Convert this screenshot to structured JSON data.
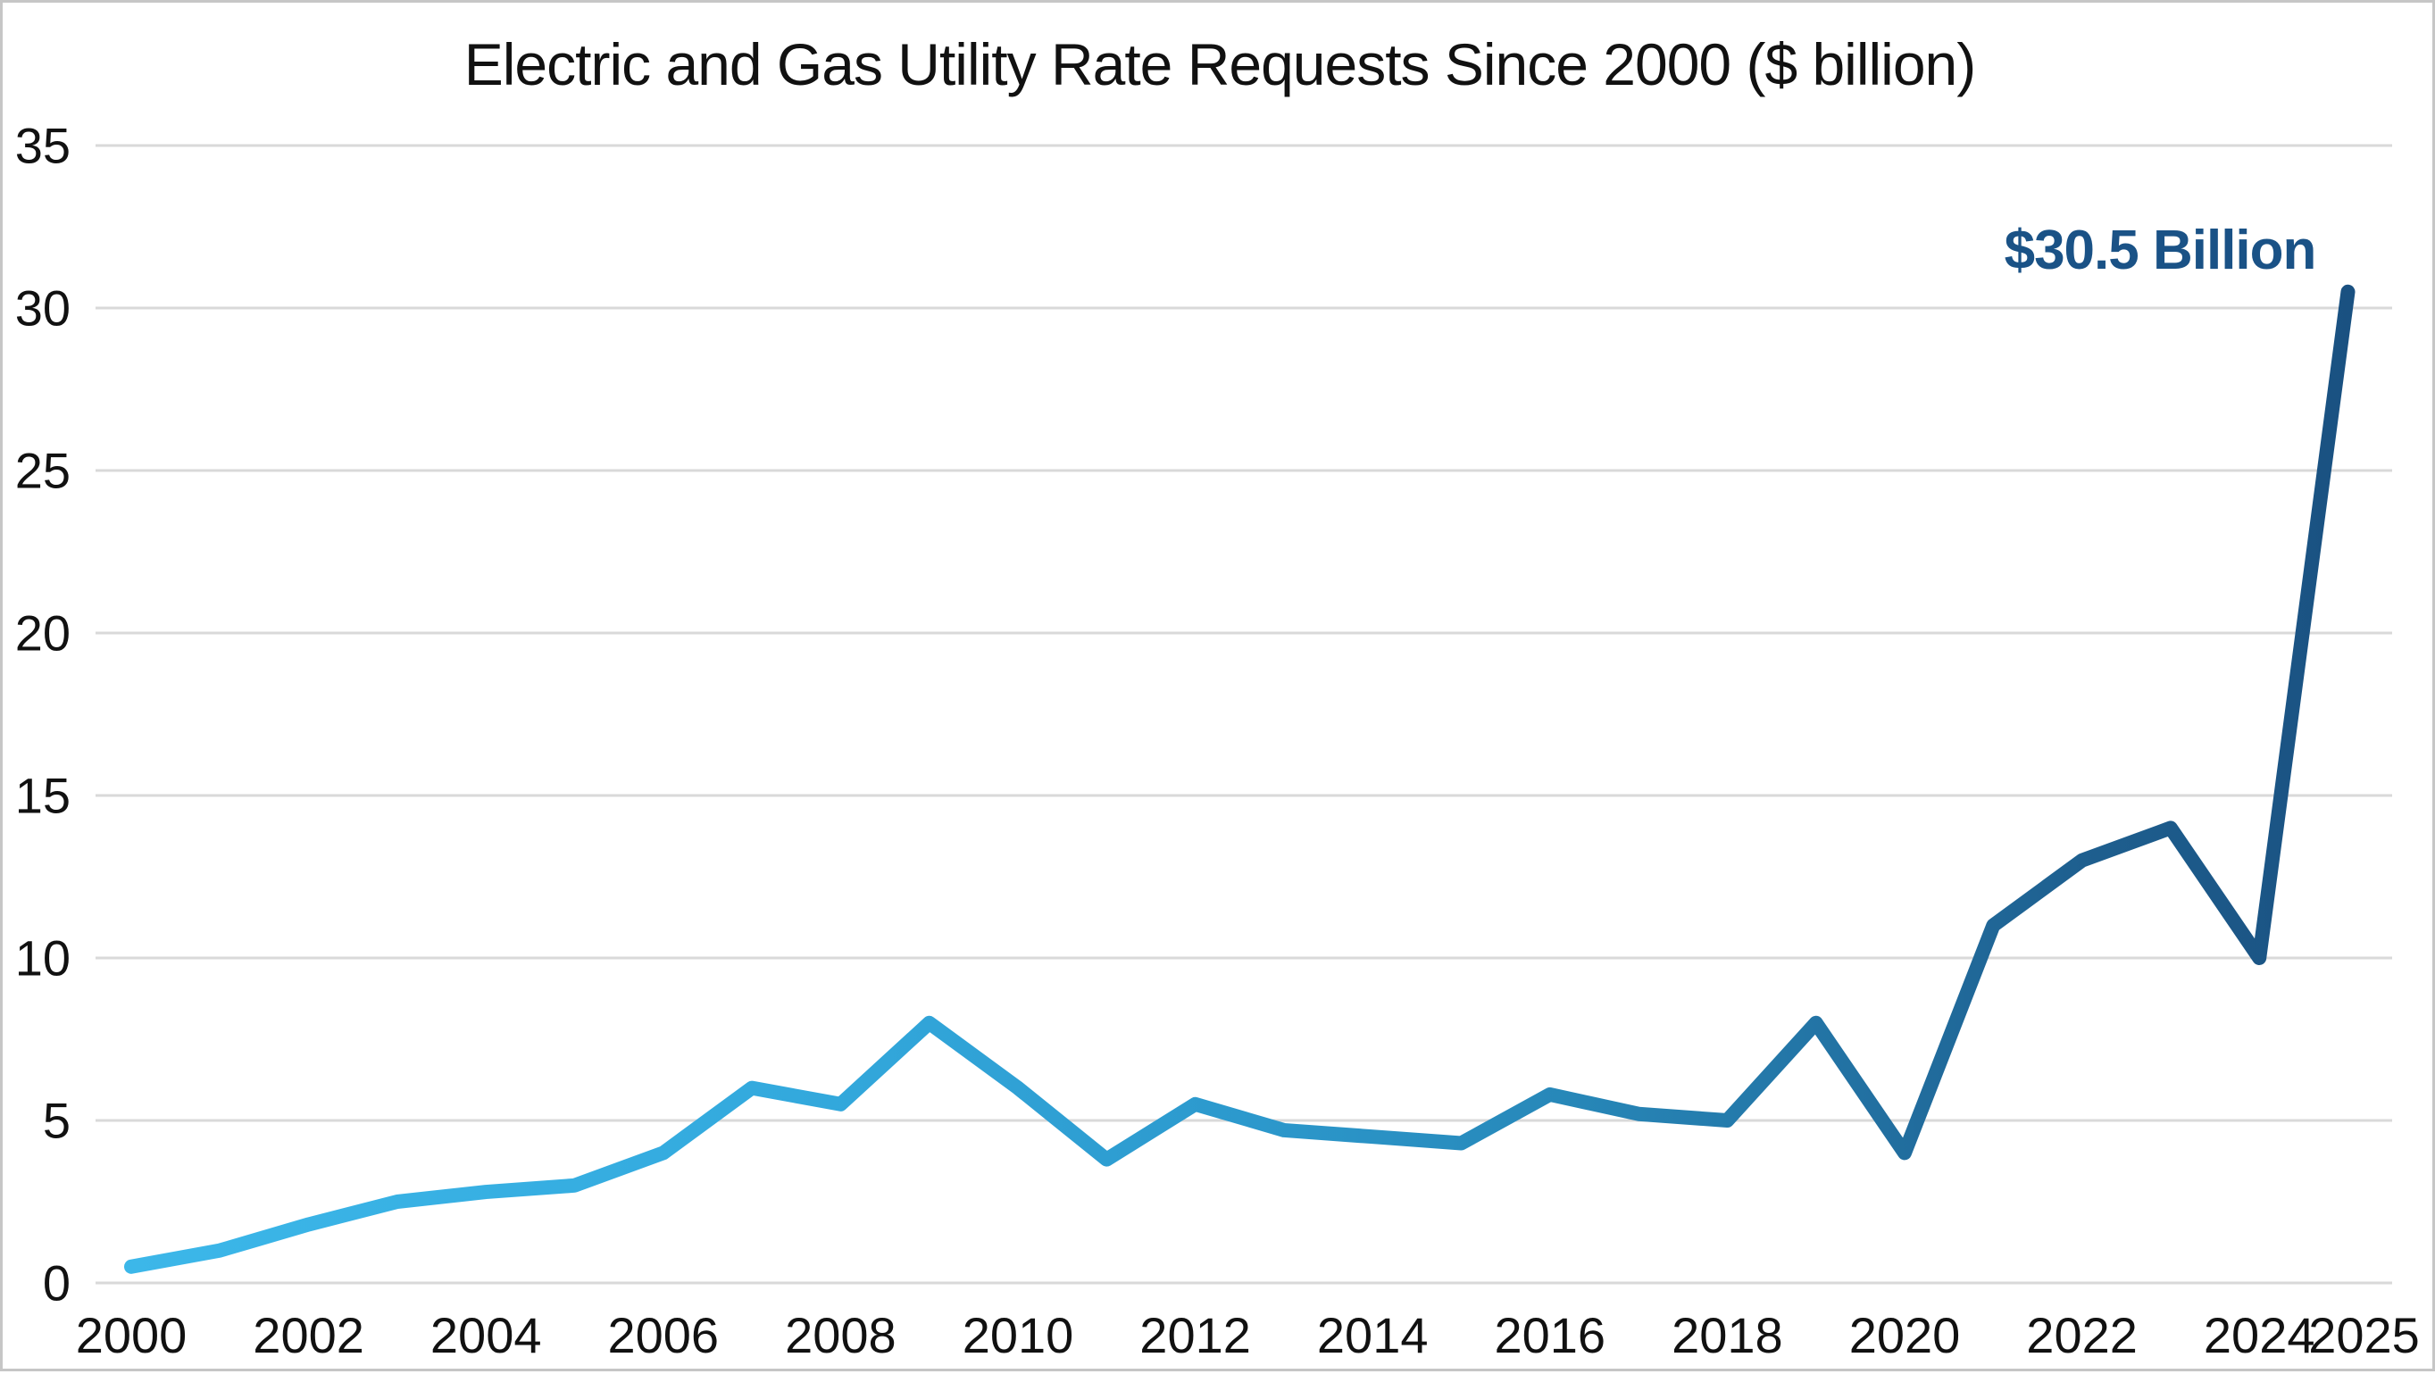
{
  "chart_data": {
    "type": "line",
    "title": "Electric and Gas Utility Rate Requests Since 2000 ($ billion)",
    "series_name": "Electric and gas utility rate requests ($ billion)",
    "years": [
      2000,
      2001,
      2002,
      2003,
      2004,
      2005,
      2006,
      2007,
      2008,
      2009,
      2010,
      2011,
      2012,
      2013,
      2014,
      2015,
      2016,
      2017,
      2018,
      2019,
      2020,
      2021,
      2022,
      2023,
      2024,
      2025
    ],
    "values": [
      0.5,
      1.0,
      1.8,
      2.5,
      2.8,
      3.0,
      4.0,
      6.0,
      5.5,
      8.0,
      6.0,
      3.8,
      5.5,
      4.7,
      4.5,
      4.3,
      5.8,
      5.2,
      5.0,
      8.0,
      4.0,
      11.0,
      13.0,
      14.0,
      10.0,
      30.5
    ],
    "annotation": {
      "text": "$30.5 Billion",
      "year": 2025,
      "value": 30.5
    },
    "x_ticks": [
      2000,
      2002,
      2004,
      2006,
      2008,
      2010,
      2012,
      2014,
      2016,
      2018,
      2020,
      2022,
      2024,
      2025
    ],
    "y_ticks": [
      0,
      5,
      10,
      15,
      20,
      25,
      30,
      35
    ],
    "xlim": [
      2000,
      2025
    ],
    "ylim": [
      0,
      35
    ],
    "grid": "horizontal-only",
    "legend": "none",
    "colors": {
      "background": "#ffffff",
      "frame_border": "#c6c6c6",
      "gridline": "#d9d9d9",
      "title_text": "#111111",
      "tick_text": "#111111",
      "annotation_text": "#1a5286",
      "line_gradient": [
        {
          "offset": 0.0,
          "color": "#3cb7e9"
        },
        {
          "offset": 0.3,
          "color": "#33a9dd"
        },
        {
          "offset": 0.5,
          "color": "#2c99cd"
        },
        {
          "offset": 0.65,
          "color": "#2787b8"
        },
        {
          "offset": 0.78,
          "color": "#2271a2"
        },
        {
          "offset": 0.88,
          "color": "#1e5f8f"
        },
        {
          "offset": 1.0,
          "color": "#1a5181"
        }
      ]
    }
  }
}
